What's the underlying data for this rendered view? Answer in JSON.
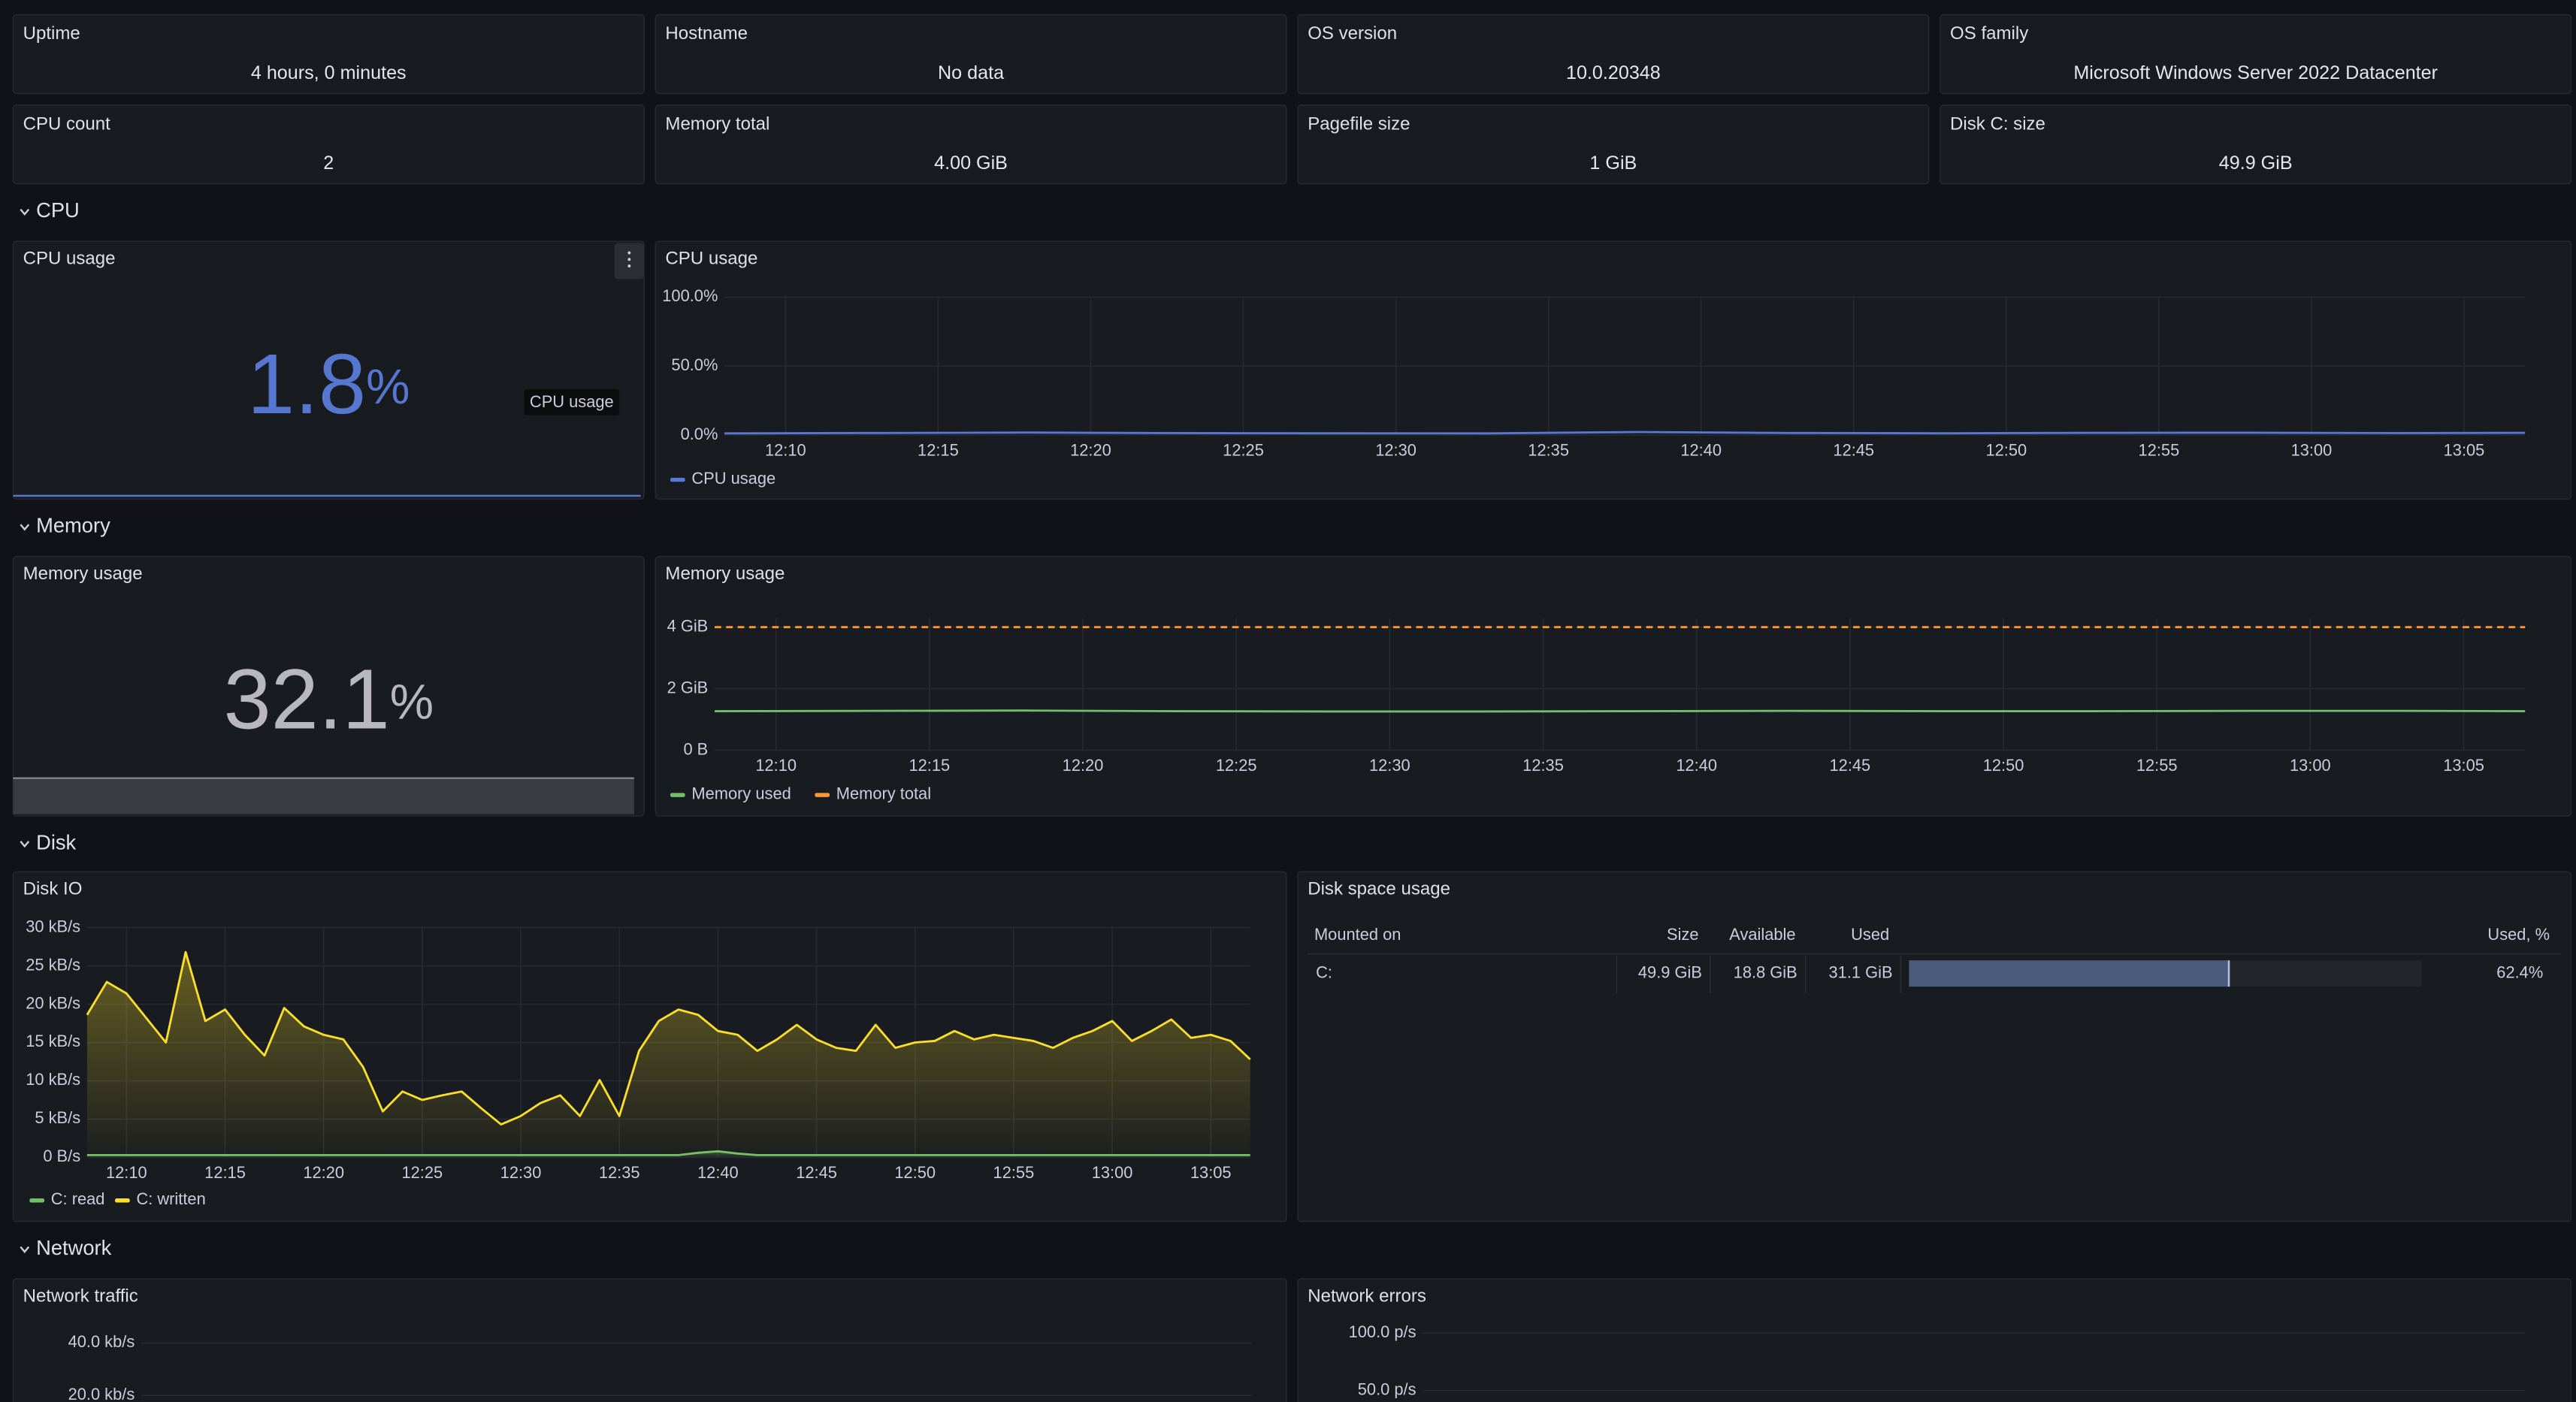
{
  "stats": [
    {
      "title": "Uptime",
      "value": "4 hours, 0 minutes"
    },
    {
      "title": "Hostname",
      "value": "No data"
    },
    {
      "title": "OS version",
      "value": "10.0.20348"
    },
    {
      "title": "OS family",
      "value": "Microsoft Windows Server 2022 Datacenter"
    },
    {
      "title": "CPU count",
      "value": 2
    },
    {
      "title": "Memory total",
      "value": "4.00 GiB"
    },
    {
      "title": "Pagefile size",
      "value": "1 GiB"
    },
    {
      "title": "Disk C: size",
      "value": "49.9 GiB"
    }
  ],
  "sections": [
    "CPU",
    "Memory",
    "Disk",
    "Network"
  ],
  "cpu_stat": {
    "title": "CPU usage",
    "value": 1.8,
    "unit": "%",
    "tooltip": "CPU usage"
  },
  "memory_stat": {
    "title": "Memory usage",
    "value": 32.1,
    "unit": "%"
  },
  "cpu_chart": {
    "type": "line",
    "title": "CPU usage",
    "grid": true,
    "x": [
      "12:08",
      "12:13",
      "12:18",
      "12:23",
      "12:28",
      "12:33",
      "12:38",
      "12:43",
      "12:48",
      "12:53",
      "12:58",
      "13:03",
      "13:07"
    ],
    "xlim": [
      "12:08",
      "13:07"
    ],
    "xticks": [
      "12:10",
      "12:15",
      "12:20",
      "12:25",
      "12:30",
      "12:35",
      "12:40",
      "12:45",
      "12:50",
      "12:55",
      "13:00",
      "13:05"
    ],
    "ylim": [
      0,
      100
    ],
    "yticks": [
      {
        "value": 0,
        "label": "0.0%"
      },
      {
        "value": 50,
        "label": "50.0%"
      },
      {
        "value": 100,
        "label": "100.0%"
      }
    ],
    "series": [
      {
        "name": "CPU usage",
        "color": "#5778d8",
        "values": [
          1.2,
          1.5,
          1.8,
          1.4,
          1.3,
          1.2,
          2.2,
          1.5,
          1.3,
          1.6,
          1.7,
          1.4,
          1.6
        ]
      }
    ]
  },
  "memory_chart": {
    "type": "line",
    "title": "Memory usage",
    "grid": true,
    "x": [
      "12:08",
      "12:13",
      "12:18",
      "12:23",
      "12:28",
      "12:33",
      "12:38",
      "12:43",
      "12:48",
      "12:53",
      "12:58",
      "13:03",
      "13:07"
    ],
    "xlim": [
      "12:08",
      "13:07"
    ],
    "xticks": [
      "12:10",
      "12:15",
      "12:20",
      "12:25",
      "12:30",
      "12:35",
      "12:40",
      "12:45",
      "12:50",
      "12:55",
      "13:00",
      "13:05"
    ],
    "ylim": [
      0,
      4.3
    ],
    "yticks": [
      {
        "value": 0,
        "label": "0 B"
      },
      {
        "value": 2,
        "label": "2 GiB"
      },
      {
        "value": 4,
        "label": "4 GiB"
      }
    ],
    "series": [
      {
        "name": "Memory used",
        "color": "#73bf69",
        "values": [
          1.27,
          1.28,
          1.29,
          1.27,
          1.26,
          1.26,
          1.27,
          1.28,
          1.27,
          1.27,
          1.28,
          1.28,
          1.27
        ]
      },
      {
        "name": "Memory total",
        "color": "#ff9830",
        "dashed": true,
        "values": [
          4,
          4,
          4,
          4,
          4,
          4,
          4,
          4,
          4,
          4,
          4,
          4,
          4
        ]
      }
    ]
  },
  "disk_io_chart": {
    "type": "area",
    "title": "Disk IO",
    "grid": true,
    "x": [
      "12:08",
      "12:09",
      "12:10",
      "12:11",
      "12:12",
      "12:13",
      "12:14",
      "12:15",
      "12:16",
      "12:17",
      "12:18",
      "12:19",
      "12:20",
      "12:21",
      "12:22",
      "12:23",
      "12:24",
      "12:25",
      "12:26",
      "12:27",
      "12:28",
      "12:29",
      "12:30",
      "12:31",
      "12:32",
      "12:33",
      "12:34",
      "12:35",
      "12:36",
      "12:37",
      "12:38",
      "12:39",
      "12:40",
      "12:41",
      "12:42",
      "12:43",
      "12:44",
      "12:45",
      "12:46",
      "12:47",
      "12:48",
      "12:49",
      "12:50",
      "12:51",
      "12:52",
      "12:53",
      "12:54",
      "12:55",
      "12:56",
      "12:57",
      "12:58",
      "12:59",
      "13:00",
      "13:01",
      "13:02",
      "13:03",
      "13:04",
      "13:05",
      "13:06",
      "13:07"
    ],
    "xlim": [
      "12:08",
      "13:07"
    ],
    "xticks": [
      "12:10",
      "12:15",
      "12:20",
      "12:25",
      "12:30",
      "12:35",
      "12:40",
      "12:45",
      "12:50",
      "12:55",
      "13:00",
      "13:05"
    ],
    "ylim": [
      0,
      30
    ],
    "yticks": [
      {
        "value": 0,
        "label": "0 B/s"
      },
      {
        "value": 5,
        "label": "5 kB/s"
      },
      {
        "value": 10,
        "label": "10 kB/s"
      },
      {
        "value": 15,
        "label": "15 kB/s"
      },
      {
        "value": 20,
        "label": "20 kB/s"
      },
      {
        "value": 25,
        "label": "25 kB/s"
      },
      {
        "value": 30,
        "label": "30 kB/s"
      }
    ],
    "series": [
      {
        "name": "C: read",
        "color": "#73bf69",
        "values": [
          0.3,
          0.3,
          0.3,
          0.3,
          0.3,
          0.3,
          0.3,
          0.3,
          0.3,
          0.3,
          0.3,
          0.3,
          0.3,
          0.3,
          0.3,
          0.3,
          0.3,
          0.3,
          0.3,
          0.3,
          0.3,
          0.3,
          0.3,
          0.3,
          0.3,
          0.3,
          0.3,
          0.3,
          0.3,
          0.3,
          0.3,
          0.6,
          0.8,
          0.5,
          0.3,
          0.3,
          0.3,
          0.3,
          0.3,
          0.3,
          0.3,
          0.3,
          0.3,
          0.3,
          0.3,
          0.3,
          0.3,
          0.3,
          0.3,
          0.3,
          0.3,
          0.3,
          0.3,
          0.3,
          0.3,
          0.3,
          0.3,
          0.3,
          0.3,
          0.3
        ]
      },
      {
        "name": "C: written",
        "color": "#fade2a",
        "values": [
          18.6,
          22.9,
          21.4,
          18.2,
          15,
          26.8,
          17.8,
          19.3,
          16,
          13.3,
          19.5,
          17.1,
          16,
          15.4,
          11.8,
          6,
          8.6,
          7.5,
          8.1,
          8.6,
          6.4,
          4.3,
          5.4,
          7.1,
          8.1,
          5.4,
          10.1,
          5.4,
          13.9,
          17.8,
          19.3,
          18.6,
          16.5,
          16,
          13.9,
          15.4,
          17.3,
          15.4,
          14.3,
          13.9,
          17.3,
          14.3,
          15,
          15.2,
          16.5,
          15.4,
          16,
          15.6,
          15.2,
          14.3,
          15.6,
          16.5,
          17.8,
          15.2,
          16.5,
          18,
          15.6,
          16,
          15.2,
          12.8
        ]
      }
    ]
  },
  "disk_space": {
    "title": "Disk space usage",
    "columns": [
      "Mounted on",
      "Size",
      "Available",
      "Used",
      "Used, %"
    ],
    "bar_range": [
      0,
      100
    ],
    "rows": [
      {
        "mount": "C:",
        "size": "49.9 GiB",
        "available": "18.8 GiB",
        "used": "31.1 GiB",
        "used_pct": 62.4,
        "value_label": "62.4%"
      }
    ]
  },
  "network_traffic": {
    "type": "line",
    "title": "Network traffic",
    "grid": true,
    "ylim": [
      0,
      45
    ],
    "yticks": [
      {
        "value": 20,
        "label": "20.0 kb/s"
      },
      {
        "value": 40,
        "label": "40.0 kb/s"
      }
    ]
  },
  "network_errors": {
    "type": "line",
    "title": "Network errors",
    "grid": true,
    "ylim": [
      0,
      105
    ],
    "yticks": [
      {
        "value": 50,
        "label": "50.0 p/s"
      },
      {
        "value": 100,
        "label": "100.0 p/s"
      }
    ]
  }
}
